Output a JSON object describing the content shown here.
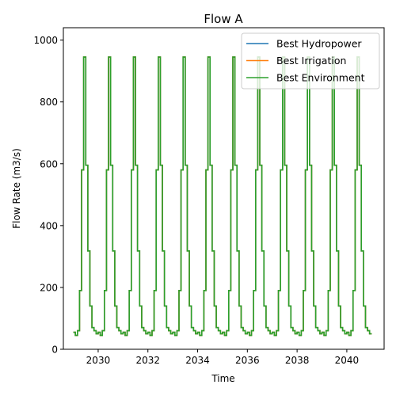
{
  "chart_data": {
    "type": "line",
    "title": "Flow A",
    "xlabel": "Time",
    "ylabel": "Flow Rate (m3/s)",
    "xlim": [
      2028.6,
      2041.5
    ],
    "ylim": [
      0,
      1040
    ],
    "x_ticks": [
      2030,
      2032,
      2034,
      2036,
      2038,
      2040
    ],
    "y_ticks": [
      0,
      200,
      400,
      600,
      800,
      1000
    ],
    "grid": false,
    "legend_position": "top-right",
    "start_year": 2029,
    "years": 12,
    "monthly_profile": [
      55,
      45,
      60,
      190,
      580,
      945,
      595,
      318,
      140,
      70,
      60,
      50
    ],
    "series": [
      {
        "name": "Best Hydropower",
        "color": "#1f77b4"
      },
      {
        "name": "Best Irrigation",
        "color": "#ff7f0e"
      },
      {
        "name": "Best Environment",
        "color": "#2ca02c"
      }
    ]
  }
}
